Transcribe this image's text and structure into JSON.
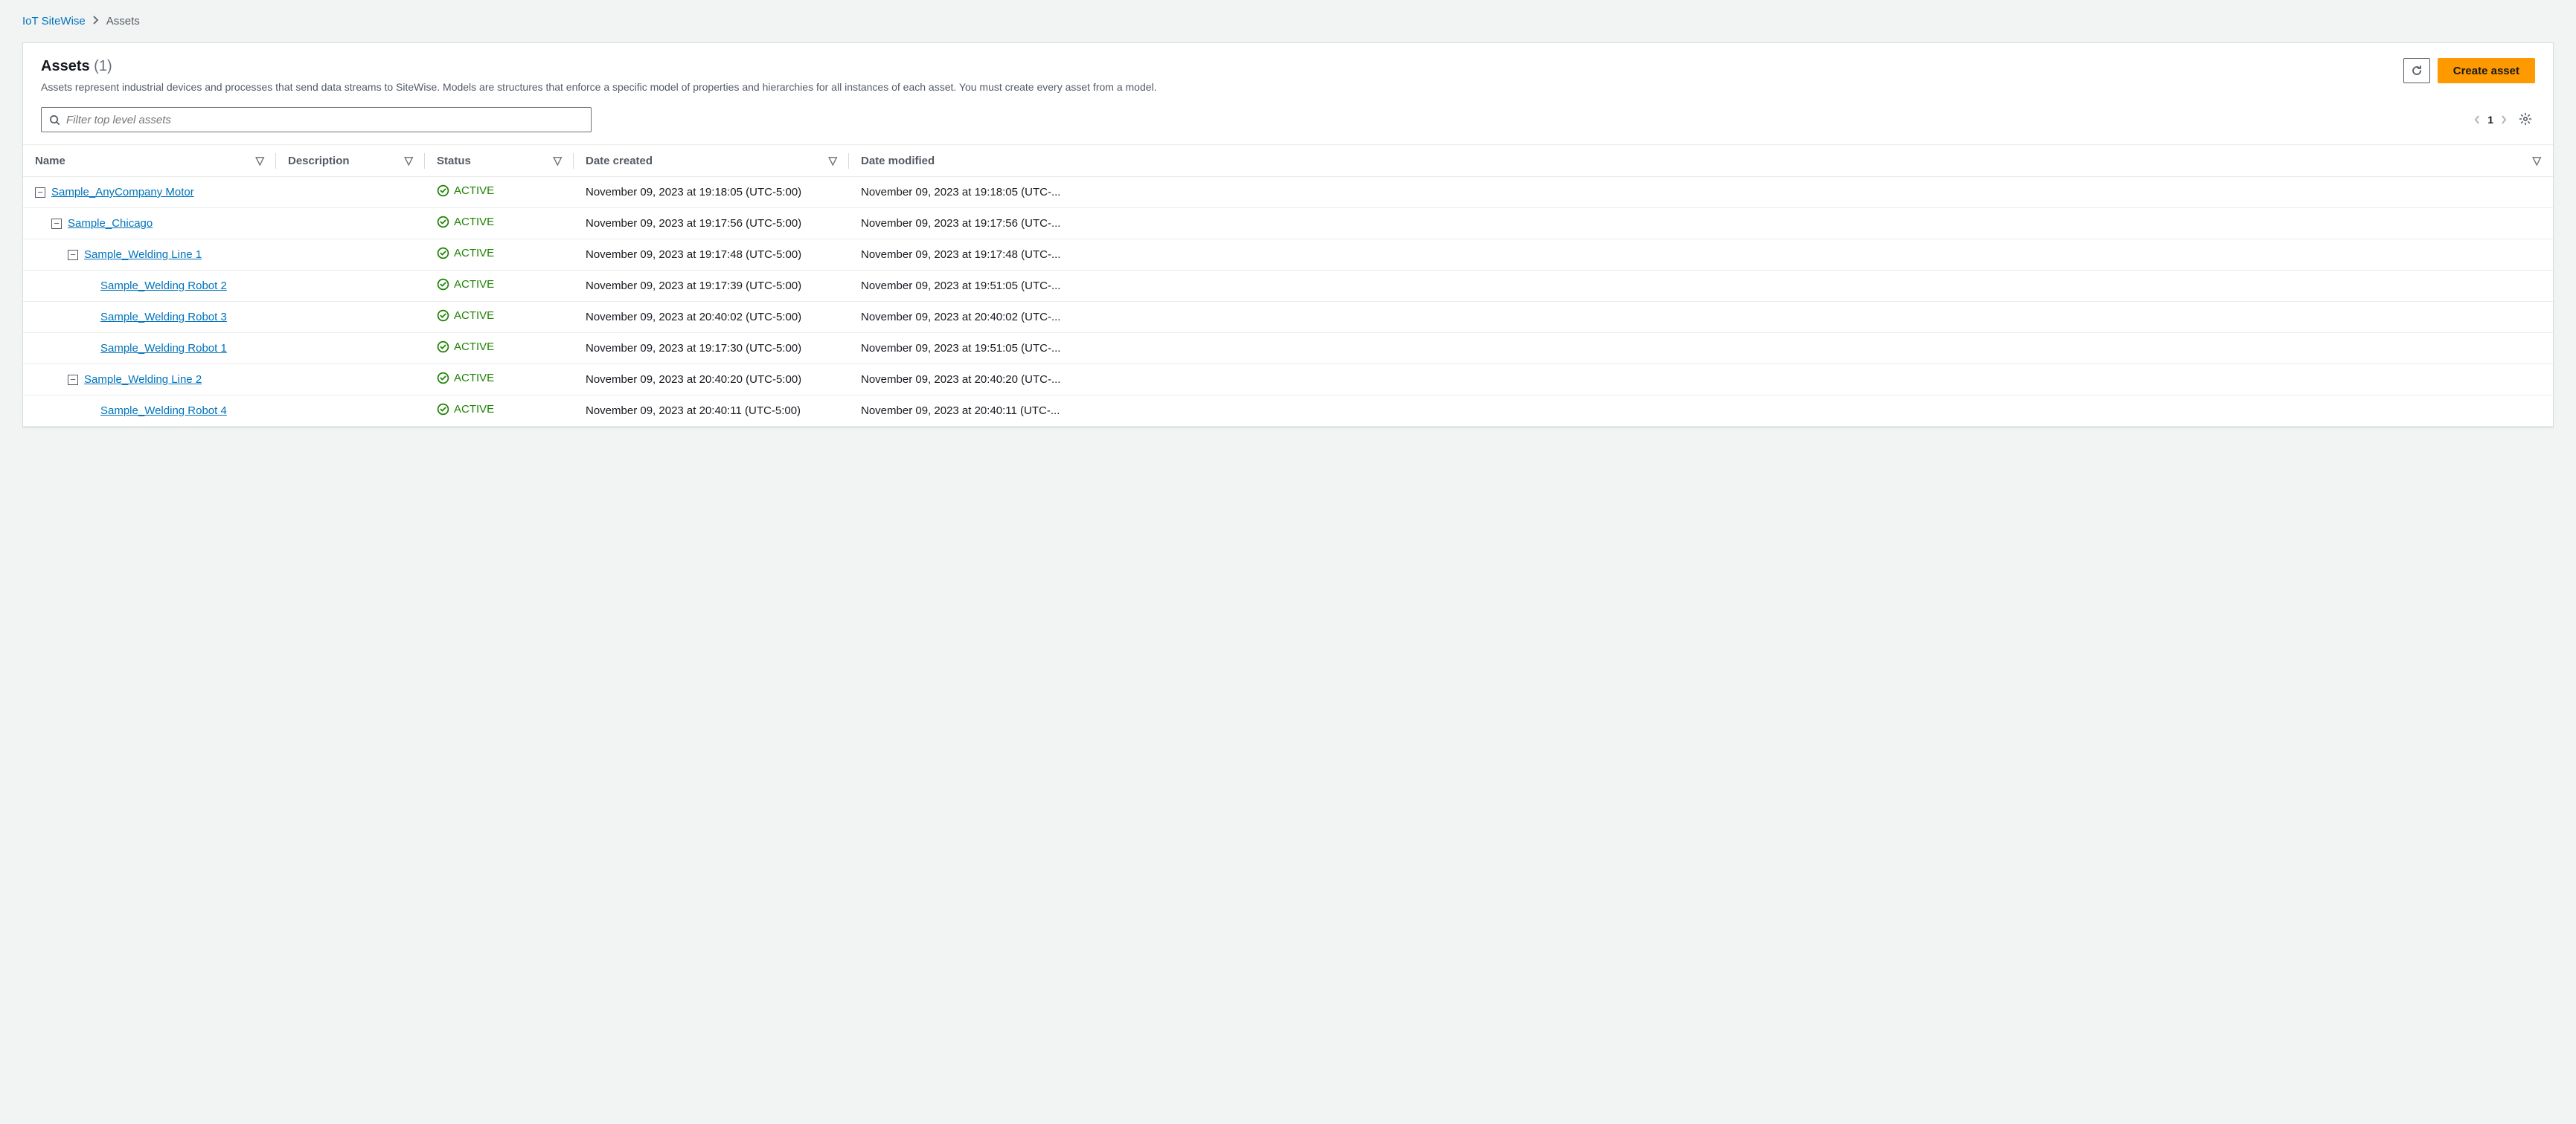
{
  "breadcrumb": {
    "root": "IoT SiteWise",
    "current": "Assets"
  },
  "panel": {
    "title": "Assets",
    "count": "(1)",
    "description": "Assets represent industrial devices and processes that send data streams to SiteWise. Models are structures that enforce a specific model of properties and hierarchies for all instances of each asset. You must create every asset from a model.",
    "create_button": "Create asset"
  },
  "search": {
    "placeholder": "Filter top level assets"
  },
  "pagination": {
    "page": "1"
  },
  "columns": {
    "name": "Name",
    "description": "Description",
    "status": "Status",
    "created": "Date created",
    "modified": "Date modified"
  },
  "rows": [
    {
      "indent": 0,
      "toggle": true,
      "name": "Sample_AnyCompany Motor",
      "status": "ACTIVE",
      "created": "November 09, 2023 at 19:18:05 (UTC-5:00)",
      "modified": "November 09, 2023 at 19:18:05 (UTC-..."
    },
    {
      "indent": 1,
      "toggle": true,
      "name": "Sample_Chicago",
      "status": "ACTIVE",
      "created": "November 09, 2023 at 19:17:56 (UTC-5:00)",
      "modified": "November 09, 2023 at 19:17:56 (UTC-..."
    },
    {
      "indent": 2,
      "toggle": true,
      "name": "Sample_Welding Line 1",
      "status": "ACTIVE",
      "created": "November 09, 2023 at 19:17:48 (UTC-5:00)",
      "modified": "November 09, 2023 at 19:17:48 (UTC-..."
    },
    {
      "indent": 3,
      "toggle": false,
      "name": "Sample_Welding Robot 2",
      "status": "ACTIVE",
      "created": "November 09, 2023 at 19:17:39 (UTC-5:00)",
      "modified": "November 09, 2023 at 19:51:05 (UTC-..."
    },
    {
      "indent": 3,
      "toggle": false,
      "name": "Sample_Welding Robot 3",
      "status": "ACTIVE",
      "created": "November 09, 2023 at 20:40:02 (UTC-5:00)",
      "modified": "November 09, 2023 at 20:40:02 (UTC-..."
    },
    {
      "indent": 3,
      "toggle": false,
      "name": "Sample_Welding Robot 1",
      "status": "ACTIVE",
      "created": "November 09, 2023 at 19:17:30 (UTC-5:00)",
      "modified": "November 09, 2023 at 19:51:05 (UTC-..."
    },
    {
      "indent": 2,
      "toggle": true,
      "name": "Sample_Welding Line 2",
      "status": "ACTIVE",
      "created": "November 09, 2023 at 20:40:20 (UTC-5:00)",
      "modified": "November 09, 2023 at 20:40:20 (UTC-..."
    },
    {
      "indent": 3,
      "toggle": false,
      "name": "Sample_Welding Robot 4",
      "status": "ACTIVE",
      "created": "November 09, 2023 at 20:40:11 (UTC-5:00)",
      "modified": "November 09, 2023 at 20:40:11 (UTC-..."
    }
  ]
}
